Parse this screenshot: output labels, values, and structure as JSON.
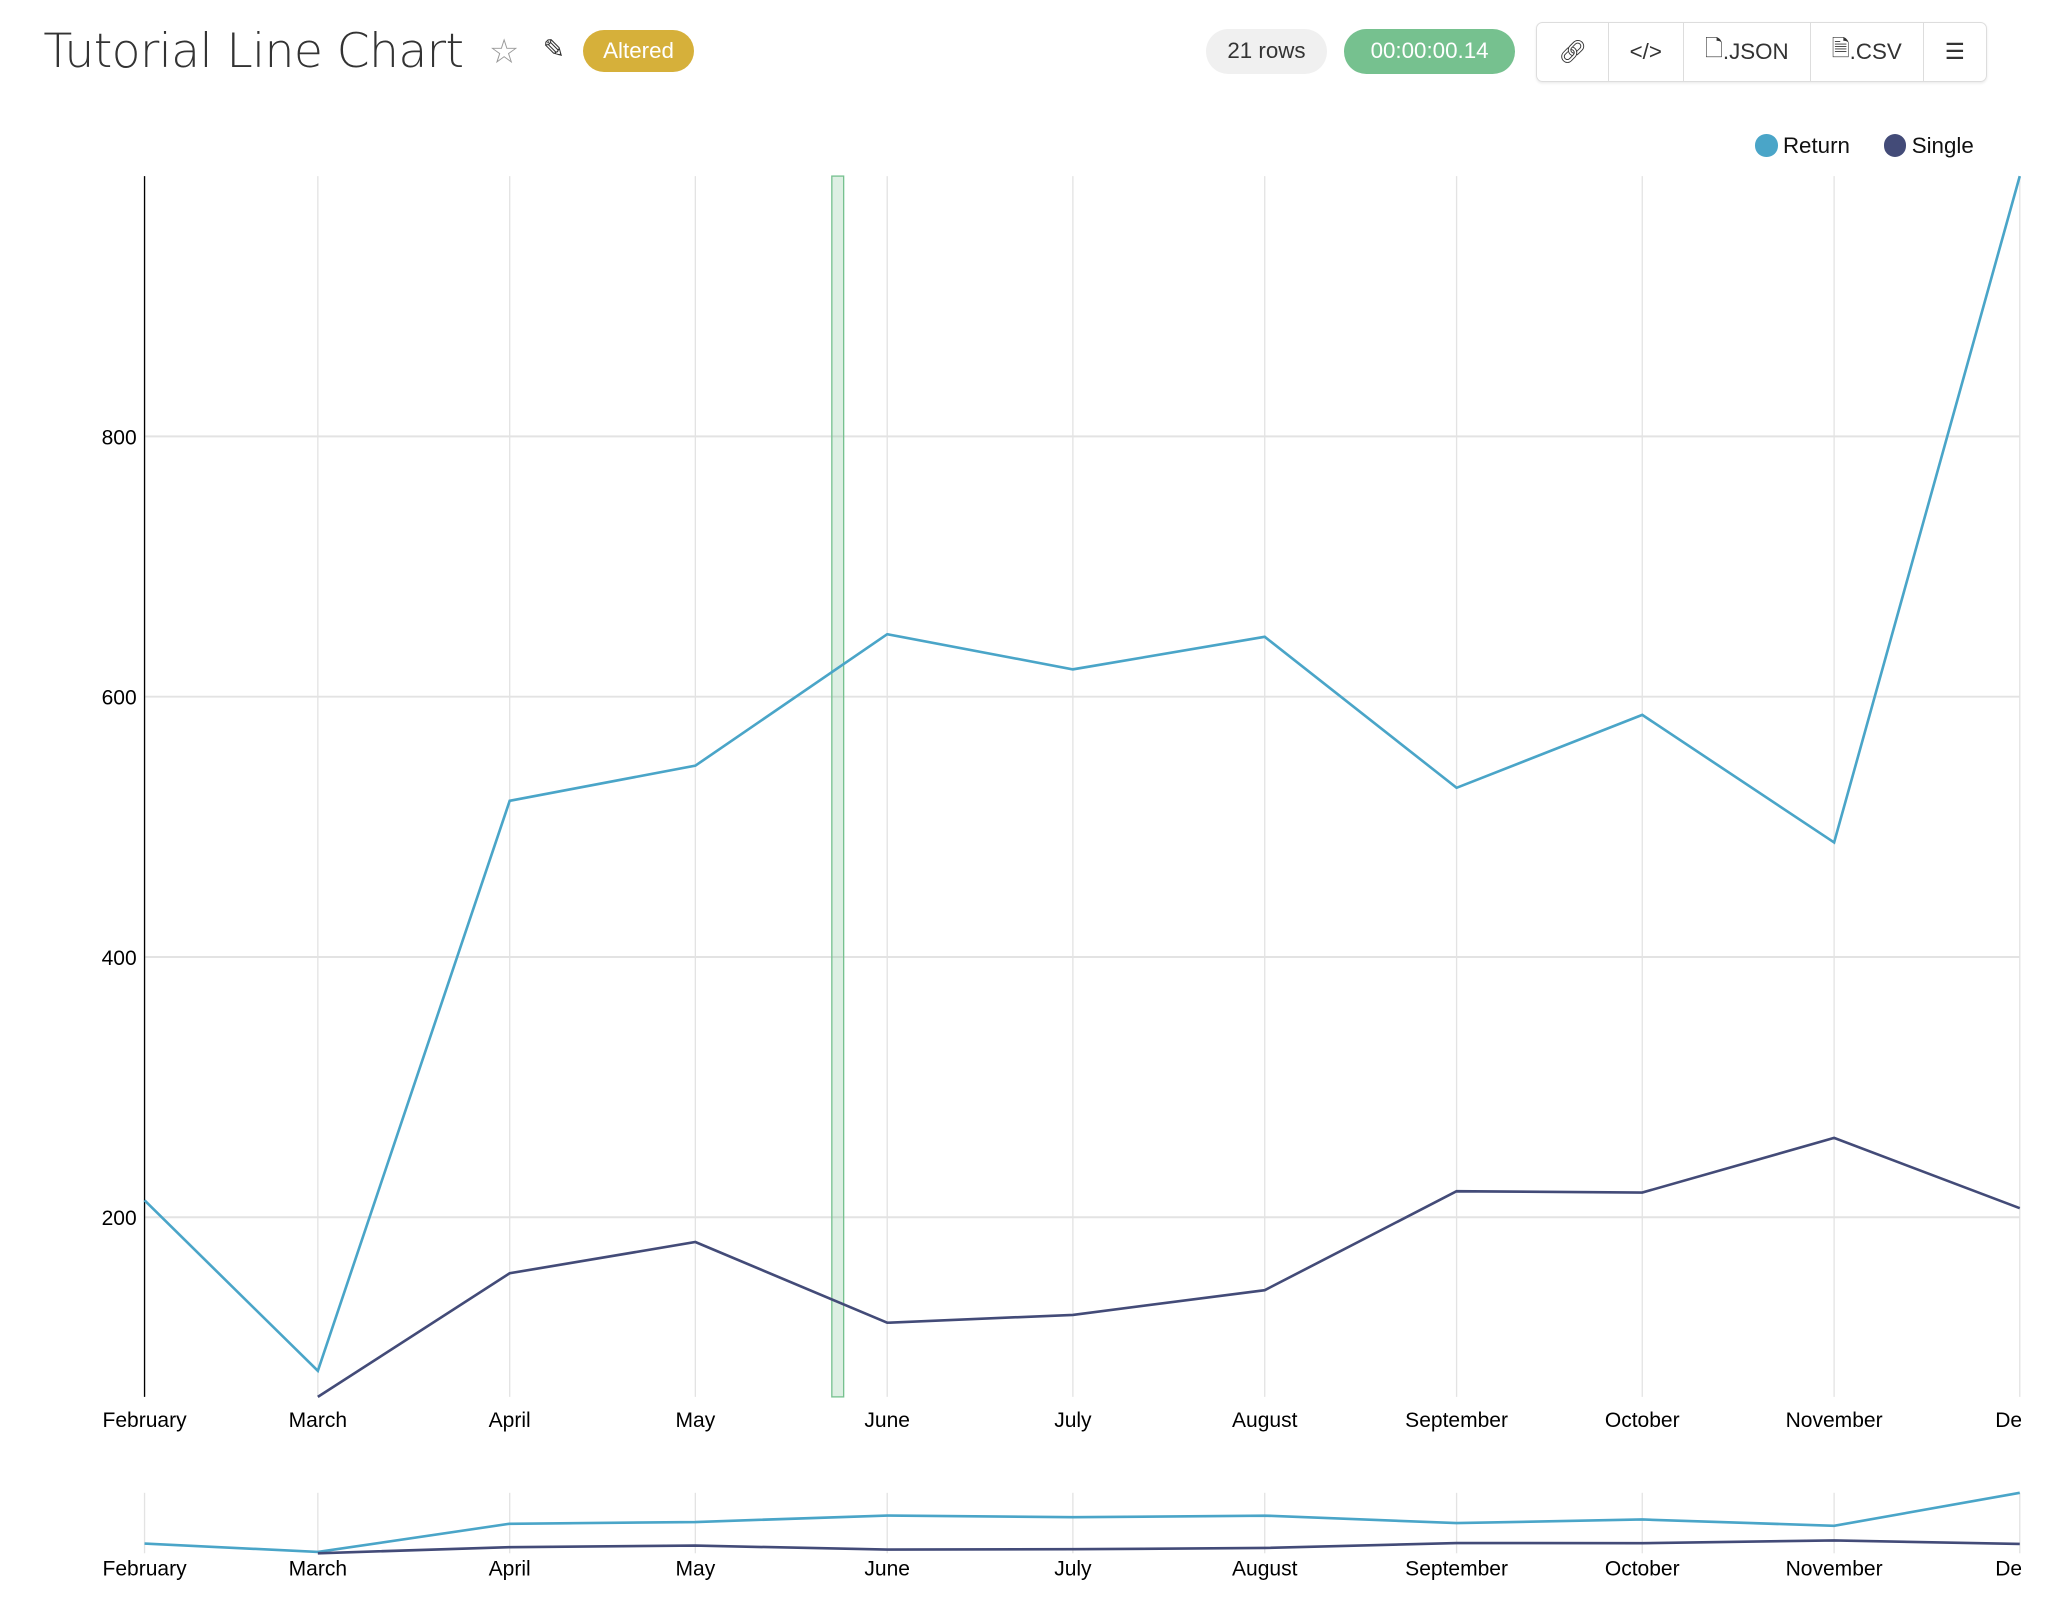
{
  "header": {
    "title": "Tutorial Line Chart",
    "badge": "Altered",
    "rows": "21 rows",
    "timer": "00:00:00.14",
    "buttons": {
      "link_icon": "link-icon",
      "embed_icon": "code-icon",
      "json": ".JSON",
      "csv": ".CSV",
      "menu_icon": "hamburger-icon"
    }
  },
  "colors": {
    "Return": "#4aa5c8",
    "Single": "#434b78",
    "badge": "#d6b03a",
    "timer": "#76c18f",
    "brush": "#76c18f"
  },
  "chart_data": {
    "type": "line",
    "categories": [
      "February",
      "March",
      "April",
      "May",
      "June",
      "July",
      "August",
      "September",
      "October",
      "November",
      "December"
    ],
    "tick_labels": [
      "February",
      "March",
      "April",
      "May",
      "June",
      "July",
      "August",
      "September",
      "October",
      "November",
      "Dece"
    ],
    "series": [
      {
        "name": "Return",
        "values": [
          213,
          82,
          520,
          547,
          648,
          621,
          646,
          530,
          586,
          488,
          1000
        ]
      },
      {
        "name": "Single",
        "values": [
          null,
          62,
          157,
          181,
          119,
          125,
          144,
          220,
          219,
          261,
          207
        ]
      }
    ],
    "y_ticks": [
      200,
      400,
      600,
      800
    ],
    "ylim": [
      62,
      1000
    ],
    "grid": true,
    "legend": "top-right",
    "has_overview_brush": true
  }
}
